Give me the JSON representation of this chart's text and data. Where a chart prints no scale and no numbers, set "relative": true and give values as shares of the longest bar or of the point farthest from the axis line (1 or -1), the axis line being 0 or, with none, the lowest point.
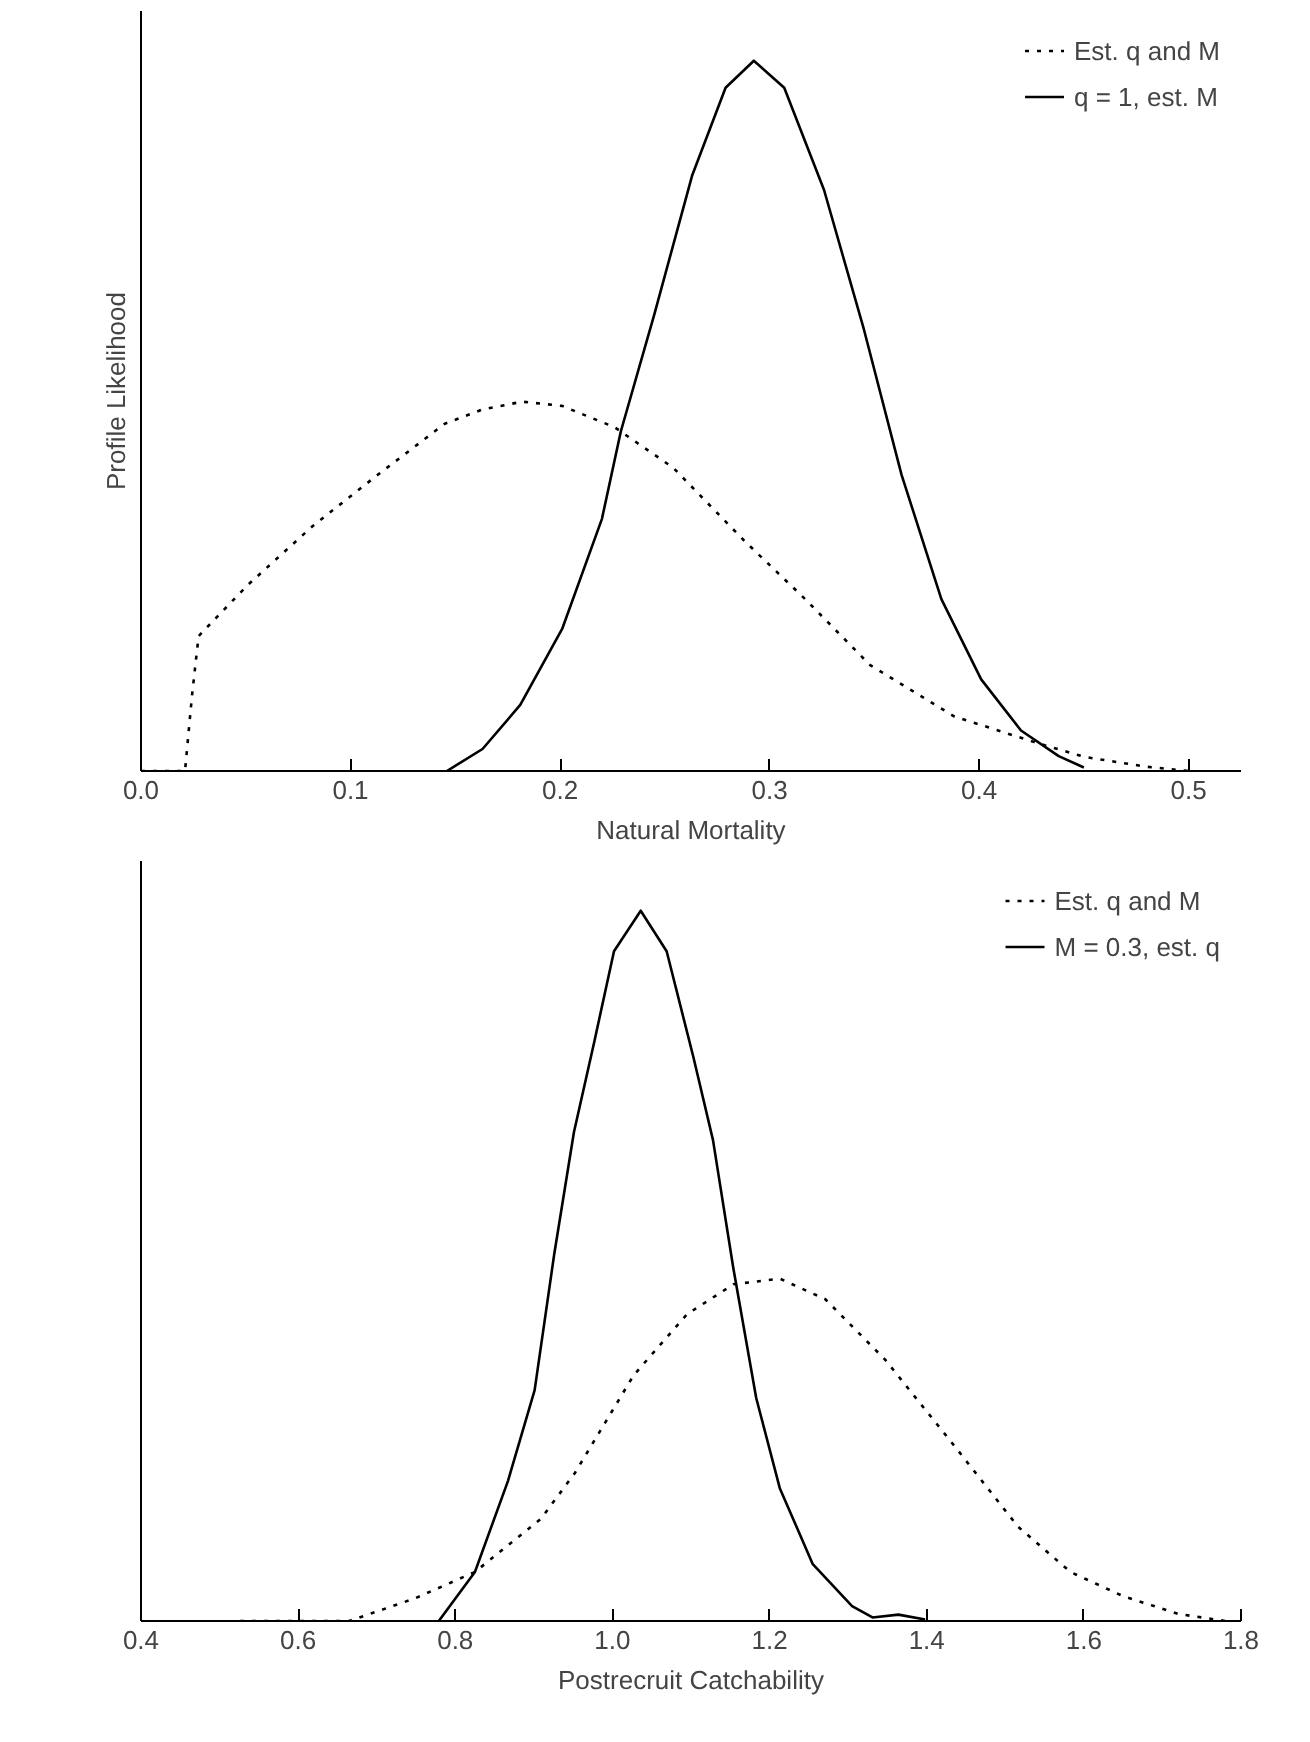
{
  "chart_data": [
    {
      "type": "line",
      "relative": true,
      "xlabel": "Natural Mortality",
      "ylabel": "Profile Likelihood",
      "xlim": [
        0,
        0.525
      ],
      "xticks": [
        {
          "value": 0,
          "label": "0.0"
        },
        0.1,
        0.2,
        0.3,
        0.4,
        0.5
      ],
      "legend": "top right",
      "grid": false,
      "series": [
        {
          "name": "Est. q and M",
          "color": "#000000",
          "line_style": "dotted",
          "x": [
            0,
            0.021,
            0.0244,
            0.0275,
            0.051,
            0.082,
            0.113,
            0.145,
            0.163,
            0.182,
            0.201,
            0.226,
            0.254,
            0.288,
            0.317,
            0.348,
            0.388,
            0.426,
            0.45,
            0.48,
            0.5
          ],
          "values": [
            0,
            0,
            0.108,
            0.19,
            0.262,
            0.345,
            0.417,
            0.489,
            0.509,
            0.52,
            0.514,
            0.484,
            0.427,
            0.324,
            0.242,
            0.149,
            0.077,
            0.041,
            0.02,
            0.006,
            0
          ]
        },
        {
          "name": "q = 1, est. M",
          "color": "#000000",
          "line_style": "solid",
          "x": [
            0.146,
            0.163,
            0.181,
            0.201,
            0.22,
            0.229,
            0.245,
            0.263,
            0.279,
            0.2925,
            0.307,
            0.326,
            0.345,
            0.363,
            0.382,
            0.401,
            0.42,
            0.438,
            0.45
          ],
          "values": [
            0,
            0.031,
            0.093,
            0.2,
            0.355,
            0.478,
            0.643,
            0.838,
            0.962,
            1,
            0.962,
            0.818,
            0.622,
            0.417,
            0.242,
            0.129,
            0.057,
            0.021,
            0.005
          ]
        }
      ]
    },
    {
      "type": "line",
      "relative": true,
      "xlabel": "Postrecruit Catchability",
      "xlim": [
        0.4,
        1.8
      ],
      "xticks": [
        0.4,
        0.6,
        0.8,
        {
          "value": 1,
          "label": "1.0"
        },
        1.2,
        1.4,
        1.6,
        1.8
      ],
      "legend": "top right",
      "grid": false,
      "series": [
        {
          "name": "Est. q and M",
          "color": "#000000",
          "line_style": "dotted",
          "x": [
            0.526,
            0.665,
            0.749,
            0.825,
            0.909,
            0.952,
            1.027,
            1.095,
            1.154,
            1.213,
            1.271,
            1.347,
            1.432,
            1.516,
            1.583,
            1.65,
            1.72,
            1.78
          ],
          "values": [
            0,
            0,
            0.032,
            0.069,
            0.144,
            0.208,
            0.346,
            0.432,
            0.474,
            0.482,
            0.453,
            0.368,
            0.251,
            0.133,
            0.069,
            0.035,
            0.01,
            0
          ]
        },
        {
          "name": "M = 0.3, est. q",
          "color": "#000000",
          "line_style": "solid",
          "x": [
            0.779,
            0.825,
            0.867,
            0.901,
            0.926,
            0.951,
            0.977,
            1.002,
            1.036,
            1.069,
            1.103,
            1.128,
            1.154,
            1.183,
            1.213,
            1.255,
            1.305,
            1.331,
            1.364,
            1.398
          ],
          "values": [
            0,
            0.069,
            0.197,
            0.325,
            0.517,
            0.688,
            0.816,
            0.943,
            1,
            0.943,
            0.794,
            0.677,
            0.496,
            0.314,
            0.187,
            0.08,
            0.021,
            0.005,
            0.009,
            0.002
          ]
        }
      ]
    }
  ]
}
